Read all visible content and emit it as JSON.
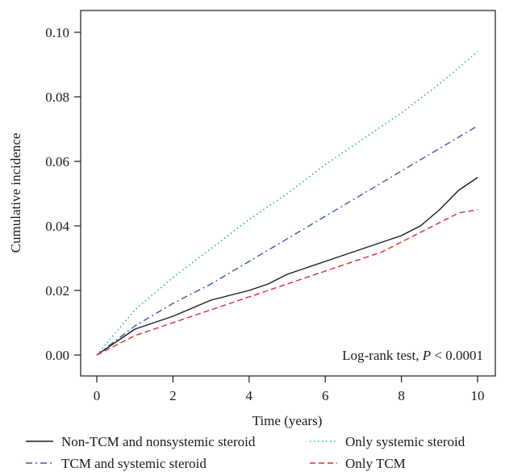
{
  "chart_data": {
    "type": "line",
    "xlabel": "Time (years)",
    "ylabel": "Cumulative incidence",
    "xlim": [
      0,
      10
    ],
    "ylim": [
      0,
      0.1
    ],
    "x_ticks": [
      0,
      2,
      4,
      6,
      8,
      10
    ],
    "x_tick_labels": [
      "0",
      "2",
      "4",
      "6",
      "8",
      "10"
    ],
    "y_ticks": [
      0,
      0.02,
      0.04,
      0.06,
      0.08,
      0.1
    ],
    "y_tick_labels": [
      "0.00",
      "0.02",
      "0.04",
      "0.06",
      "0.08",
      "0.10"
    ],
    "annotation": {
      "prefix": "Log-rank test, ",
      "p_symbol": "P",
      "suffix": " < 0.0001"
    },
    "legend_position": "bottom",
    "series": [
      {
        "name": "Non-TCM and nonsystemic steroid",
        "color": "#1a1a1a",
        "dash": "solid",
        "x": [
          0,
          0.5,
          1,
          1.5,
          2,
          3,
          4,
          4.5,
          5,
          5.5,
          6,
          6.5,
          7,
          7.5,
          8,
          8.5,
          9,
          9.5,
          10
        ],
        "y": [
          0,
          0.004,
          0.008,
          0.01,
          0.012,
          0.017,
          0.02,
          0.022,
          0.025,
          0.027,
          0.029,
          0.031,
          0.033,
          0.035,
          0.037,
          0.04,
          0.045,
          0.051,
          0.055
        ]
      },
      {
        "name": "Only systemic steroid",
        "color": "#2bb39a",
        "dash": "dotted",
        "x": [
          0,
          0.5,
          1,
          1.5,
          2,
          3,
          4,
          5,
          6,
          7,
          8,
          9,
          10
        ],
        "y": [
          0,
          0.007,
          0.014,
          0.019,
          0.024,
          0.033,
          0.042,
          0.05,
          0.059,
          0.067,
          0.075,
          0.084,
          0.094
        ]
      },
      {
        "name": "TCM and systemic steroid",
        "color": "#3a5aa6",
        "dash": "dashdot",
        "x": [
          0,
          1,
          2,
          3,
          4,
          5,
          6,
          7,
          8,
          9,
          10
        ],
        "y": [
          0,
          0.009,
          0.016,
          0.022,
          0.029,
          0.036,
          0.043,
          0.05,
          0.057,
          0.064,
          0.071
        ]
      },
      {
        "name": "Only TCM",
        "color": "#d92e2e",
        "dash": "dashed",
        "x": [
          0,
          0.5,
          1,
          1.5,
          2,
          3,
          4,
          4.5,
          5,
          5.5,
          6,
          6.5,
          7,
          7.5,
          8,
          8.5,
          9,
          9.5,
          10
        ],
        "y": [
          0,
          0.003,
          0.006,
          0.008,
          0.01,
          0.014,
          0.018,
          0.02,
          0.022,
          0.024,
          0.026,
          0.028,
          0.03,
          0.032,
          0.035,
          0.038,
          0.041,
          0.044,
          0.045
        ]
      }
    ]
  }
}
